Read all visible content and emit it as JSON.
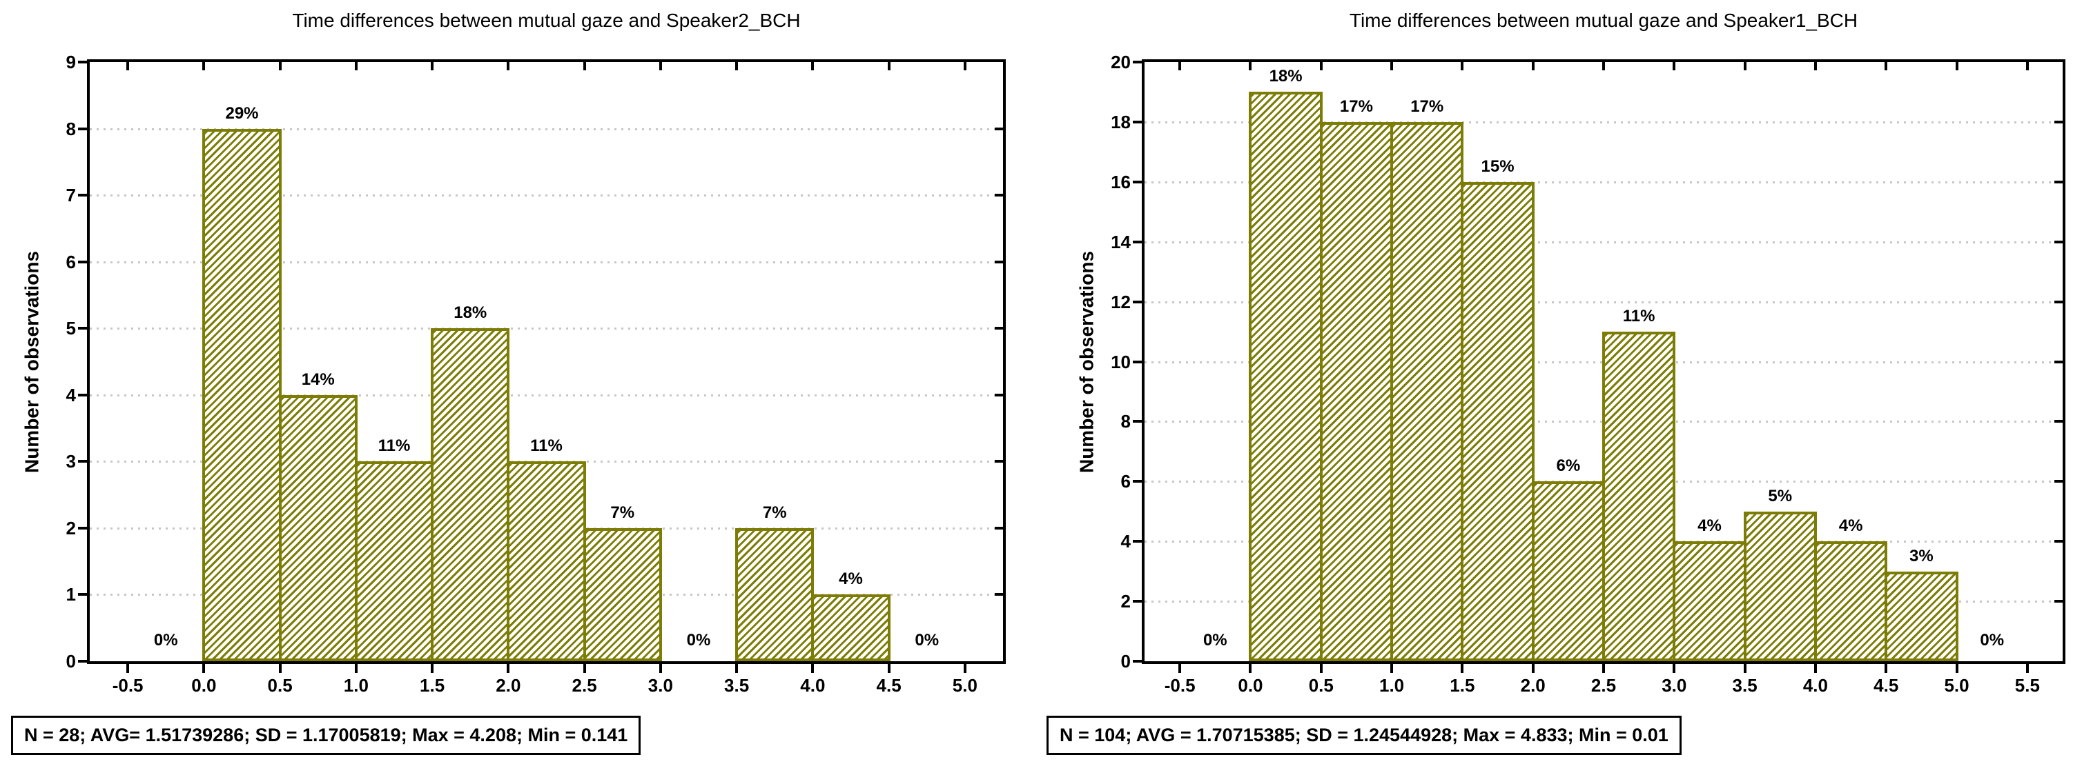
{
  "colors": {
    "bar_hatch": "#7d7d05",
    "grid_dots": "#c6c6c6",
    "axis": "#000000",
    "text": "#000000",
    "background": "#ffffff"
  },
  "chart_data": [
    {
      "type": "bar",
      "subtype": "histogram",
      "title": "Time differences between mutual gaze and Speaker2_BCH",
      "xlabel": "",
      "ylabel": "Number of observations",
      "bin_edges": [
        -0.5,
        0.0,
        0.5,
        1.0,
        1.5,
        2.0,
        2.5,
        3.0,
        3.5,
        4.0,
        4.5,
        5.0
      ],
      "values": [
        0,
        8,
        4,
        3,
        5,
        3,
        2,
        0,
        2,
        1,
        0
      ],
      "percent_labels": [
        "0%",
        "29%",
        "14%",
        "11%",
        "18%",
        "11%",
        "7%",
        "0%",
        "7%",
        "4%",
        "0%"
      ],
      "x_tick_labels": [
        "-0.5",
        "0.0",
        "0.5",
        "1.0",
        "1.5",
        "2.0",
        "2.5",
        "3.0",
        "3.5",
        "4.0",
        "4.5",
        "5.0"
      ],
      "y_tick_labels": [
        "0",
        "1",
        "2",
        "3",
        "4",
        "5",
        "6",
        "7",
        "8",
        "9"
      ],
      "xlim": [
        -0.75,
        5.25
      ],
      "ylim": [
        0,
        9
      ],
      "y_tick_step": 1,
      "grid": "horizontal dotted gridlines at each y tick",
      "legend": "none",
      "footer": "N = 28; AVG= 1.51739286; SD = 1.17005819; Max = 4.208; Min = 0.141",
      "stats": {
        "N": 28,
        "AVG": 1.51739286,
        "SD": 1.17005819,
        "Max": 4.208,
        "Min": 0.141
      }
    },
    {
      "type": "bar",
      "subtype": "histogram",
      "title": "Time differences between mutual gaze and Speaker1_BCH",
      "xlabel": "",
      "ylabel": "Number of observations",
      "bin_edges": [
        -0.5,
        0.0,
        0.5,
        1.0,
        1.5,
        2.0,
        2.5,
        3.0,
        3.5,
        4.0,
        4.5,
        5.0,
        5.5
      ],
      "values": [
        0,
        19,
        18,
        18,
        16,
        6,
        11,
        4,
        5,
        4,
        3,
        0
      ],
      "percent_labels": [
        "0%",
        "18%",
        "17%",
        "17%",
        "15%",
        "6%",
        "11%",
        "4%",
        "5%",
        "4%",
        "3%",
        "0%"
      ],
      "x_tick_labels": [
        "-0.5",
        "0.0",
        "0.5",
        "1.0",
        "1.5",
        "2.0",
        "2.5",
        "3.0",
        "3.5",
        "4.0",
        "4.5",
        "5.0",
        "5.5"
      ],
      "y_tick_labels": [
        "0",
        "2",
        "4",
        "6",
        "8",
        "10",
        "12",
        "14",
        "16",
        "18",
        "20"
      ],
      "xlim": [
        -0.75,
        5.75
      ],
      "ylim": [
        0,
        20
      ],
      "y_tick_step": 2,
      "grid": "horizontal dotted gridlines at each y tick",
      "legend": "none",
      "footer": "N = 104; AVG = 1.70715385; SD = 1.24544928; Max = 4.833; Min = 0.01",
      "stats": {
        "N": 104,
        "AVG": 1.70715385,
        "SD": 1.24544928,
        "Max": 4.833,
        "Min": 0.01
      }
    }
  ]
}
